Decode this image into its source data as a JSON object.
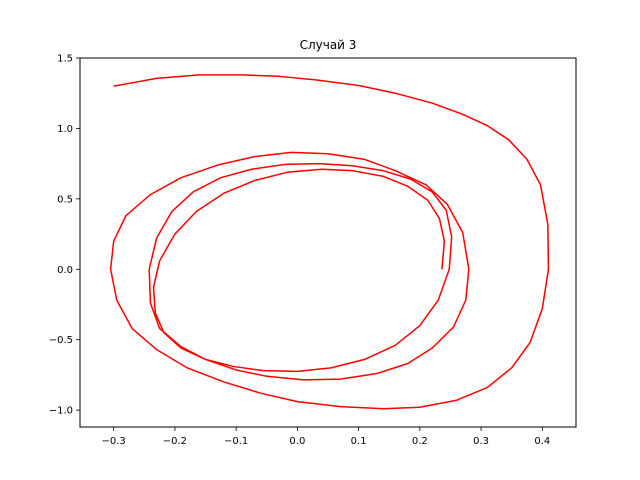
{
  "chart_data": {
    "type": "line",
    "title": "Случай 3",
    "xlabel": "",
    "ylabel": "",
    "xlim": [
      -0.355,
      0.455
    ],
    "ylim": [
      -1.12,
      1.5
    ],
    "x_ticks": [
      -0.3,
      -0.2,
      -0.1,
      0.0,
      0.1,
      0.2,
      0.3,
      0.4
    ],
    "x_tick_labels": [
      "−0.3",
      "−0.2",
      "−0.1",
      "0.0",
      "0.1",
      "0.2",
      "0.3",
      "0.4"
    ],
    "y_ticks": [
      -1.0,
      -0.5,
      0.0,
      0.5,
      1.0,
      1.5
    ],
    "y_tick_labels": [
      "−1.0",
      "−0.5",
      "0.0",
      "0.5",
      "1.0",
      "1.5"
    ],
    "grid": false,
    "series": [
      {
        "color": "#ff0000",
        "x": [
          -0.3,
          -0.23,
          -0.16,
          -0.09,
          -0.03,
          0.03,
          0.1,
          0.16,
          0.22,
          0.27,
          0.31,
          0.345,
          0.375,
          0.397,
          0.409,
          0.41,
          0.4,
          0.38,
          0.35,
          0.31,
          0.26,
          0.2,
          0.14,
          0.07,
          0.0,
          -0.06,
          -0.12,
          -0.18,
          -0.23,
          -0.27,
          -0.295,
          -0.305,
          -0.3,
          -0.28,
          -0.24,
          -0.19,
          -0.13,
          -0.07,
          -0.01,
          0.05,
          0.11,
          0.16,
          0.21,
          0.245,
          0.27,
          0.28,
          0.275,
          0.255,
          0.22,
          0.18,
          0.13,
          0.07,
          0.01,
          -0.05,
          -0.1,
          -0.15,
          -0.19,
          -0.225,
          -0.24,
          -0.242,
          -0.23,
          -0.205,
          -0.17,
          -0.125,
          -0.075,
          -0.02,
          0.035,
          0.09,
          0.14,
          0.185,
          0.22,
          0.243,
          0.252,
          0.248,
          0.23,
          0.2,
          0.16,
          0.11,
          0.055,
          0.0,
          -0.055,
          -0.105,
          -0.15,
          -0.19,
          -0.218,
          -0.232,
          -0.235,
          -0.225,
          -0.2,
          -0.165,
          -0.12,
          -0.07,
          -0.015,
          0.04,
          0.09,
          0.14,
          0.18,
          0.213,
          0.232,
          0.24,
          0.236
        ],
        "y": [
          1.3,
          1.355,
          1.38,
          1.38,
          1.37,
          1.345,
          1.305,
          1.25,
          1.18,
          1.1,
          1.02,
          0.92,
          0.78,
          0.6,
          0.32,
          0.0,
          -0.28,
          -0.52,
          -0.7,
          -0.84,
          -0.93,
          -0.98,
          -0.99,
          -0.975,
          -0.94,
          -0.88,
          -0.8,
          -0.7,
          -0.57,
          -0.42,
          -0.22,
          0.0,
          0.2,
          0.38,
          0.53,
          0.65,
          0.74,
          0.8,
          0.83,
          0.82,
          0.78,
          0.7,
          0.6,
          0.46,
          0.26,
          0.0,
          -0.22,
          -0.41,
          -0.56,
          -0.67,
          -0.74,
          -0.78,
          -0.785,
          -0.76,
          -0.715,
          -0.64,
          -0.55,
          -0.42,
          -0.24,
          0.0,
          0.22,
          0.41,
          0.55,
          0.65,
          0.71,
          0.745,
          0.75,
          0.735,
          0.7,
          0.64,
          0.55,
          0.42,
          0.23,
          0.0,
          -0.22,
          -0.4,
          -0.54,
          -0.64,
          -0.7,
          -0.725,
          -0.72,
          -0.69,
          -0.64,
          -0.56,
          -0.45,
          -0.31,
          -0.13,
          0.06,
          0.25,
          0.41,
          0.54,
          0.63,
          0.69,
          0.71,
          0.7,
          0.66,
          0.59,
          0.49,
          0.36,
          0.2,
          0.0
        ]
      }
    ]
  }
}
